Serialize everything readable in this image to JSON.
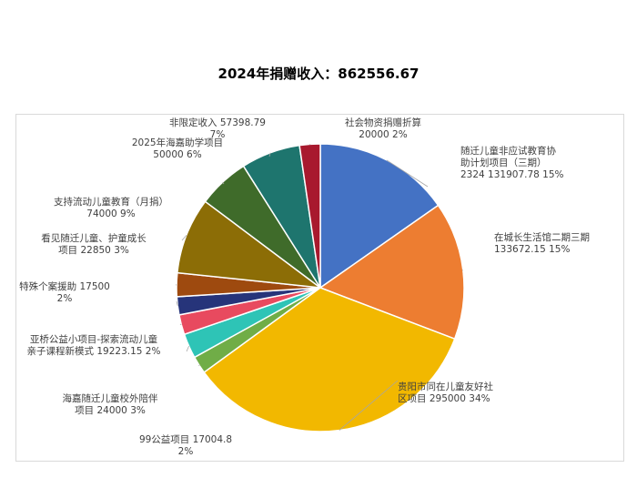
{
  "chart_data": {
    "type": "pie",
    "title": "2024年捐赠收入：862556.67",
    "slices": [
      {
        "label_lines": [
          "随迁儿童非应试教育协",
          "助计划项目（三期）",
          "2324 131907.78 15%"
        ],
        "value": 131907.78,
        "percent": 15,
        "color": "#4472C4"
      },
      {
        "label_lines": [
          "在城长生活馆二期三期",
          "133672.15 15%"
        ],
        "value": 133672.15,
        "percent": 15,
        "color": "#ED7D31"
      },
      {
        "label_lines": [
          "贵阳市同在儿童友好社",
          "区项目 295000 34%"
        ],
        "value": 295000,
        "percent": 34,
        "color": "#F2B800"
      },
      {
        "label_lines": [
          "99公益项目 17004.8",
          "2%"
        ],
        "value": 17004.8,
        "percent": 2,
        "color": "#70AD47"
      },
      {
        "label_lines": [
          "海嘉随迁儿童校外陪伴",
          "项目 24000 3%"
        ],
        "value": 24000,
        "percent": 3,
        "color": "#2EC4B6"
      },
      {
        "label_lines": [
          "亚桥公益小项目-探索流动儿童",
          "亲子课程新模式 19223.15 2%"
        ],
        "value": 19223.15,
        "percent": 2,
        "color": "#E84A5F"
      },
      {
        "label_lines": [
          "特殊个案援助 17500",
          "2%"
        ],
        "value": 17500,
        "percent": 2,
        "color": "#26347A"
      },
      {
        "label_lines": [
          "看见随迁儿童、护童成长",
          "项目 22850 3%"
        ],
        "value": 22850,
        "percent": 3,
        "color": "#9E4A0F"
      },
      {
        "label_lines": [
          "支持流动儿童教育（月捐）",
          "74000 9%"
        ],
        "value": 74000,
        "percent": 9,
        "color": "#8C6D06"
      },
      {
        "label_lines": [
          "2025年海嘉助学项目",
          "50000 6%"
        ],
        "value": 50000,
        "percent": 6,
        "color": "#3F6B2A"
      },
      {
        "label_lines": [
          "非限定收入 57398.79",
          "7%"
        ],
        "value": 57398.79,
        "percent": 7,
        "color": "#1E756E"
      },
      {
        "label_lines": [
          "社会物资捐赠折算",
          "20000 2%"
        ],
        "value": 20000,
        "percent": 2,
        "color": "#A8192E"
      }
    ]
  }
}
